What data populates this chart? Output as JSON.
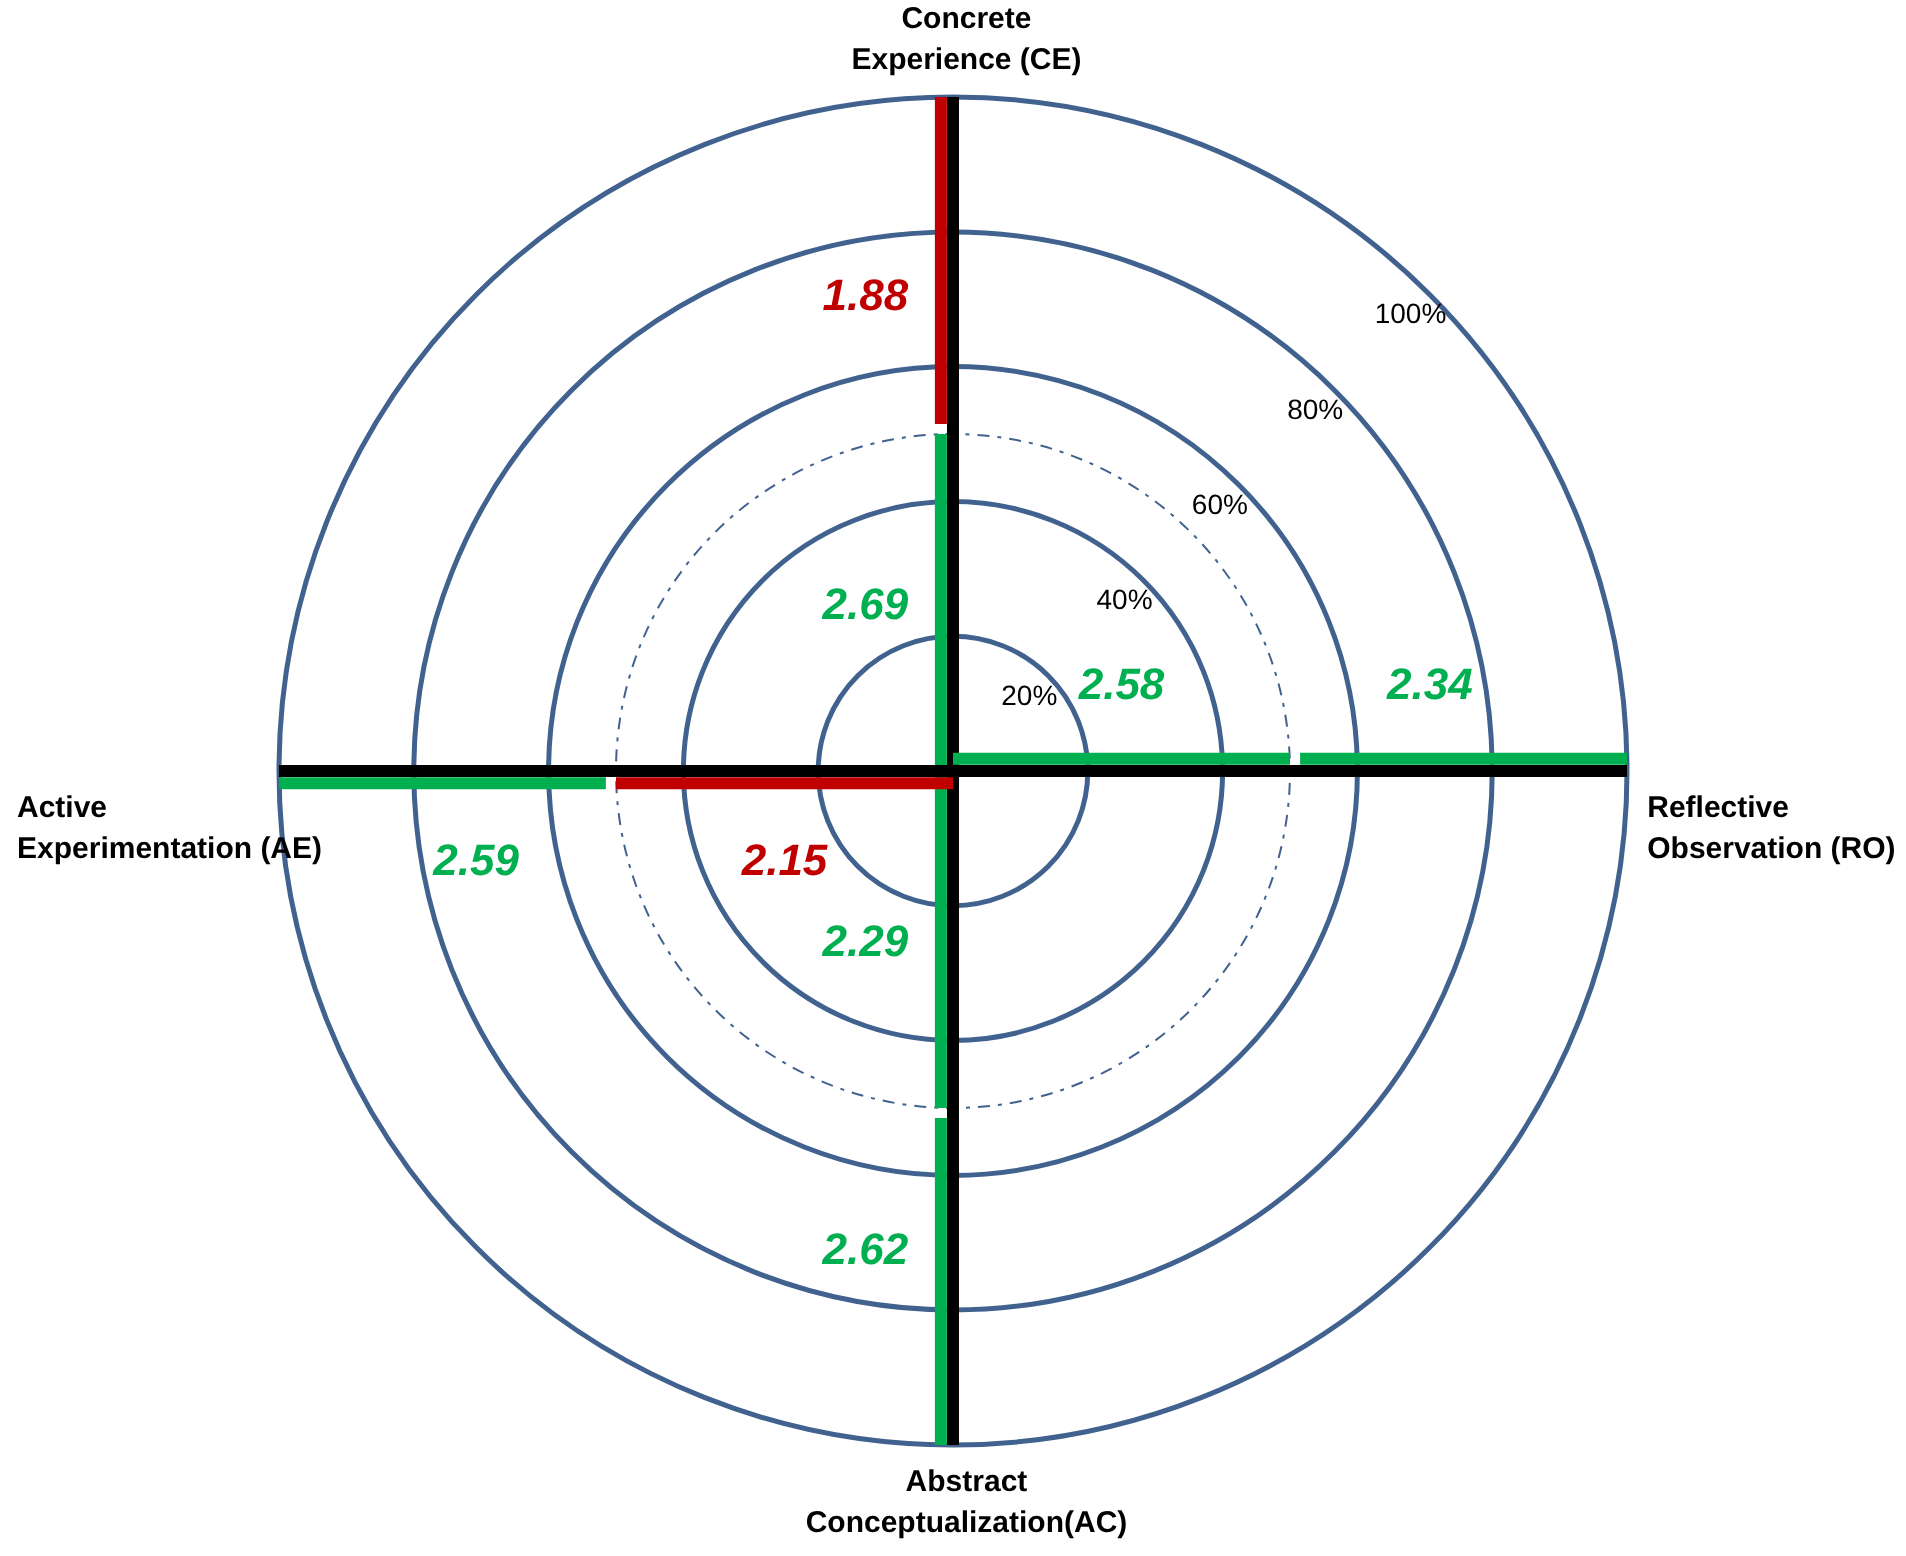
{
  "chart_data": {
    "type": "other",
    "categories": [
      "Concrete Experience (CE)",
      "Reflective Observation (RO)",
      "Abstract Conceptualization(AC)",
      "Active Experimentation (AE)"
    ],
    "series": [
      {
        "values": [
          2.69,
          2.58,
          2.29,
          2.15
        ],
        "colors": [
          "#00b050",
          "#00b050",
          "#00b050",
          "#c00000"
        ]
      },
      {
        "values": [
          1.88,
          2.34,
          2.62,
          2.59
        ],
        "colors": [
          "#c00000",
          "#00b050",
          "#00b050",
          "#00b050"
        ]
      }
    ],
    "data_labels": true,
    "annotations": [
      "20%",
      "40%",
      "60%",
      "80%",
      "100%"
    ]
  }
}
